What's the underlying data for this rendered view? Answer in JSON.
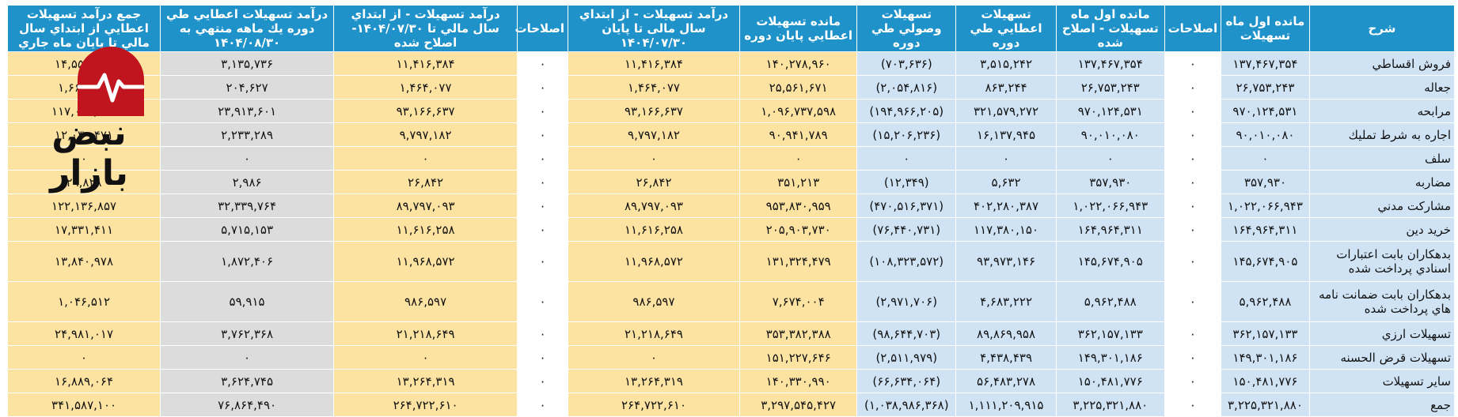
{
  "headers": [
    "شرح",
    "مانده اول ماه تسهيلات",
    "اصلاحات",
    "مانده اول ماه تسهيلات - اصلاح شده",
    "تسهيلات اعطايي طي دوره",
    "تسهيلات وصولي طي دوره",
    "مانده تسهيلات اعطايي پايان دوره",
    "درآمد تسهيلات - از ابتداي سال مالی تا پايان ۱۴۰۴/۰۷/۳۰",
    "اصلاحات",
    "درآمد تسهيلات - از ابتداي سال مالي تا ۱۴۰۴/۰۷/۳۰- اصلاح شده",
    "درآمد تسهيلات اعطايي طي دوره يك ماهه منتهي به ۱۴۰۴/۰۸/۳۰",
    "جمع درآمد تسهيلات اعطايي از ابتداي سال مالي تا پايان ماه جاري"
  ],
  "rows": [
    {
      "label": "فروش اقساطي",
      "c1": "۱۳۷,۴۶۷,۳۵۴",
      "c2": "۰",
      "c3": "۱۳۷,۴۶۷,۳۵۴",
      "c4": "۳,۵۱۵,۲۴۲",
      "c5": "(۷۰۳,۶۳۶)",
      "c6": "۱۴۰,۲۷۸,۹۶۰",
      "c7": "۱۱,۴۱۶,۳۸۴",
      "c8": "۰",
      "c9": "۱۱,۴۱۶,۳۸۴",
      "c10": "۳,۱۳۵,۷۳۶",
      "c11": "۱۴,۵۵۲,۱۲۰"
    },
    {
      "label": "جعاله",
      "c1": "۲۶,۷۵۳,۲۴۳",
      "c2": "۰",
      "c3": "۲۶,۷۵۳,۲۴۳",
      "c4": "۸۶۳,۲۴۴",
      "c5": "(۲,۰۵۴,۸۱۶)",
      "c6": "۲۵,۵۶۱,۶۷۱",
      "c7": "۱,۴۶۴,۰۷۷",
      "c8": "۰",
      "c9": "۱,۴۶۴,۰۷۷",
      "c10": "۲۰۴,۶۲۷",
      "c11": "۱,۶۶۸,۷۰۴"
    },
    {
      "label": "مرابحه",
      "c1": "۹۷۰,۱۲۴,۵۳۱",
      "c2": "۰",
      "c3": "۹۷۰,۱۲۴,۵۳۱",
      "c4": "۳۲۱,۵۷۹,۲۷۲",
      "c5": "(۱۹۴,۹۶۶,۲۰۵)",
      "c6": "۱,۰۹۶,۷۳۷,۵۹۸",
      "c7": "۹۳,۱۶۶,۶۳۷",
      "c8": "۰",
      "c9": "۹۳,۱۶۶,۶۳۷",
      "c10": "۲۳,۹۱۳,۶۰۱",
      "c11": "۱۱۷,۰۸۰,۲۳۸"
    },
    {
      "label": "اجاره به شرط تمليك",
      "c1": "۹۰,۰۱۰,۰۸۰",
      "c2": "۰",
      "c3": "۹۰,۰۱۰,۰۸۰",
      "c4": "۱۶,۱۳۷,۹۴۵",
      "c5": "(۱۵,۲۰۶,۲۳۶)",
      "c6": "۹۰,۹۴۱,۷۸۹",
      "c7": "۹,۷۹۷,۱۸۲",
      "c8": "۰",
      "c9": "۹,۷۹۷,۱۸۲",
      "c10": "۲,۲۳۳,۲۸۹",
      "c11": "۱۲,۰۳۰,۴۷۱"
    },
    {
      "label": "سلف",
      "c1": "۰",
      "c2": "۰",
      "c3": "۰",
      "c4": "۰",
      "c5": "۰",
      "c6": "۰",
      "c7": "۰",
      "c8": "۰",
      "c9": "۰",
      "c10": "۰",
      "c11": "۰"
    },
    {
      "label": "مضاربه",
      "c1": "۳۵۷,۹۳۰",
      "c2": "۰",
      "c3": "۳۵۷,۹۳۰",
      "c4": "۵,۶۳۲",
      "c5": "(۱۲,۳۴۹)",
      "c6": "۳۵۱,۲۱۳",
      "c7": "۲۶,۸۴۲",
      "c8": "۰",
      "c9": "۲۶,۸۴۲",
      "c10": "۲,۹۸۶",
      "c11": "۲۹,۸۲۸"
    },
    {
      "label": "مشاركت مدني",
      "c1": "۱,۰۲۲,۰۶۶,۹۴۳",
      "c2": "۰",
      "c3": "۱,۰۲۲,۰۶۶,۹۴۳",
      "c4": "۴۰۲,۲۸۰,۳۸۷",
      "c5": "(۴۷۰,۵۱۶,۳۷۱)",
      "c6": "۹۵۳,۸۳۰,۹۵۹",
      "c7": "۸۹,۷۹۷,۰۹۳",
      "c8": "۰",
      "c9": "۸۹,۷۹۷,۰۹۳",
      "c10": "۳۲,۳۳۹,۷۶۴",
      "c11": "۱۲۲,۱۳۶,۸۵۷"
    },
    {
      "label": "خريد دين",
      "c1": "۱۶۴,۹۶۴,۳۱۱",
      "c2": "۰",
      "c3": "۱۶۴,۹۶۴,۳۱۱",
      "c4": "۱۱۷,۳۸۰,۱۵۰",
      "c5": "(۷۶,۴۴۰,۷۳۱)",
      "c6": "۲۰۵,۹۰۳,۷۳۰",
      "c7": "۱۱,۶۱۶,۲۵۸",
      "c8": "۰",
      "c9": "۱۱,۶۱۶,۲۵۸",
      "c10": "۵,۷۱۵,۱۵۳",
      "c11": "۱۷,۳۳۱,۴۱۱"
    },
    {
      "label": "بدهكاران بابت اعتبارات اسنادي پرداخت شده",
      "c1": "۱۴۵,۶۷۴,۹۰۵",
      "c2": "۰",
      "c3": "۱۴۵,۶۷۴,۹۰۵",
      "c4": "۹۳,۹۷۳,۱۴۶",
      "c5": "(۱۰۸,۳۲۳,۵۷۲)",
      "c6": "۱۳۱,۳۲۴,۴۷۹",
      "c7": "۱۱,۹۶۸,۵۷۲",
      "c8": "۰",
      "c9": "۱۱,۹۶۸,۵۷۲",
      "c10": "۱,۸۷۲,۴۰۶",
      "c11": "۱۳,۸۴۰,۹۷۸",
      "tall": true
    },
    {
      "label": "بدهكاران بابت ضمانت نامه هاي پرداخت شده",
      "c1": "۵,۹۶۲,۴۸۸",
      "c2": "۰",
      "c3": "۵,۹۶۲,۴۸۸",
      "c4": "۴,۶۸۳,۲۲۲",
      "c5": "(۲,۹۷۱,۷۰۶)",
      "c6": "۷,۶۷۴,۰۰۴",
      "c7": "۹۸۶,۵۹۷",
      "c8": "۰",
      "c9": "۹۸۶,۵۹۷",
      "c10": "۵۹,۹۱۵",
      "c11": "۱,۰۴۶,۵۱۲",
      "tall": true
    },
    {
      "label": "تسهيلات ارزي",
      "c1": "۳۶۲,۱۵۷,۱۳۳",
      "c2": "۰",
      "c3": "۳۶۲,۱۵۷,۱۳۳",
      "c4": "۸۹,۸۶۹,۹۵۸",
      "c5": "(۹۸,۶۴۴,۷۰۳)",
      "c6": "۳۵۳,۳۸۲,۳۸۸",
      "c7": "۲۱,۲۱۸,۶۴۹",
      "c8": "۰",
      "c9": "۲۱,۲۱۸,۶۴۹",
      "c10": "۳,۷۶۲,۳۶۸",
      "c11": "۲۴,۹۸۱,۰۱۷"
    },
    {
      "label": "تسهيلات قرض الحسنه",
      "c1": "۱۴۹,۳۰۱,۱۸۶",
      "c2": "۰",
      "c3": "۱۴۹,۳۰۱,۱۸۶",
      "c4": "۴,۴۳۸,۴۳۹",
      "c5": "(۲,۵۱۱,۹۷۹)",
      "c6": "۱۵۱,۲۲۷,۶۴۶",
      "c7": "۰",
      "c8": "۰",
      "c9": "۰",
      "c10": "۰",
      "c11": "۰"
    },
    {
      "label": "ساير تسهيلات",
      "c1": "۱۵۰,۴۸۱,۷۷۶",
      "c2": "۰",
      "c3": "۱۵۰,۴۸۱,۷۷۶",
      "c4": "۵۶,۴۸۳,۲۷۸",
      "c5": "(۶۶,۶۳۴,۰۶۴)",
      "c6": "۱۴۰,۳۳۰,۹۹۰",
      "c7": "۱۳,۲۶۴,۳۱۹",
      "c8": "۰",
      "c9": "۱۳,۲۶۴,۳۱۹",
      "c10": "۳,۶۲۴,۷۴۵",
      "c11": "۱۶,۸۸۹,۰۶۴"
    },
    {
      "label": "جمع",
      "c1": "۳,۲۲۵,۳۲۱,۸۸۰",
      "c2": "۰",
      "c3": "۳,۲۲۵,۳۲۱,۸۸۰",
      "c4": "۱,۱۱۱,۲۰۹,۹۱۵",
      "c5": "(۱,۰۳۸,۹۸۶,۳۶۸)",
      "c6": "۳,۲۹۷,۵۴۵,۴۲۷",
      "c7": "۲۶۴,۷۲۲,۶۱۰",
      "c8": "۰",
      "c9": "۲۶۴,۷۲۲,۶۱۰",
      "c10": "۷۶,۸۶۴,۴۹۰",
      "c11": "۳۴۱,۵۸۷,۱۰۰"
    }
  ],
  "watermark": {
    "text": "نبض بازار",
    "color": "#c0151e"
  }
}
